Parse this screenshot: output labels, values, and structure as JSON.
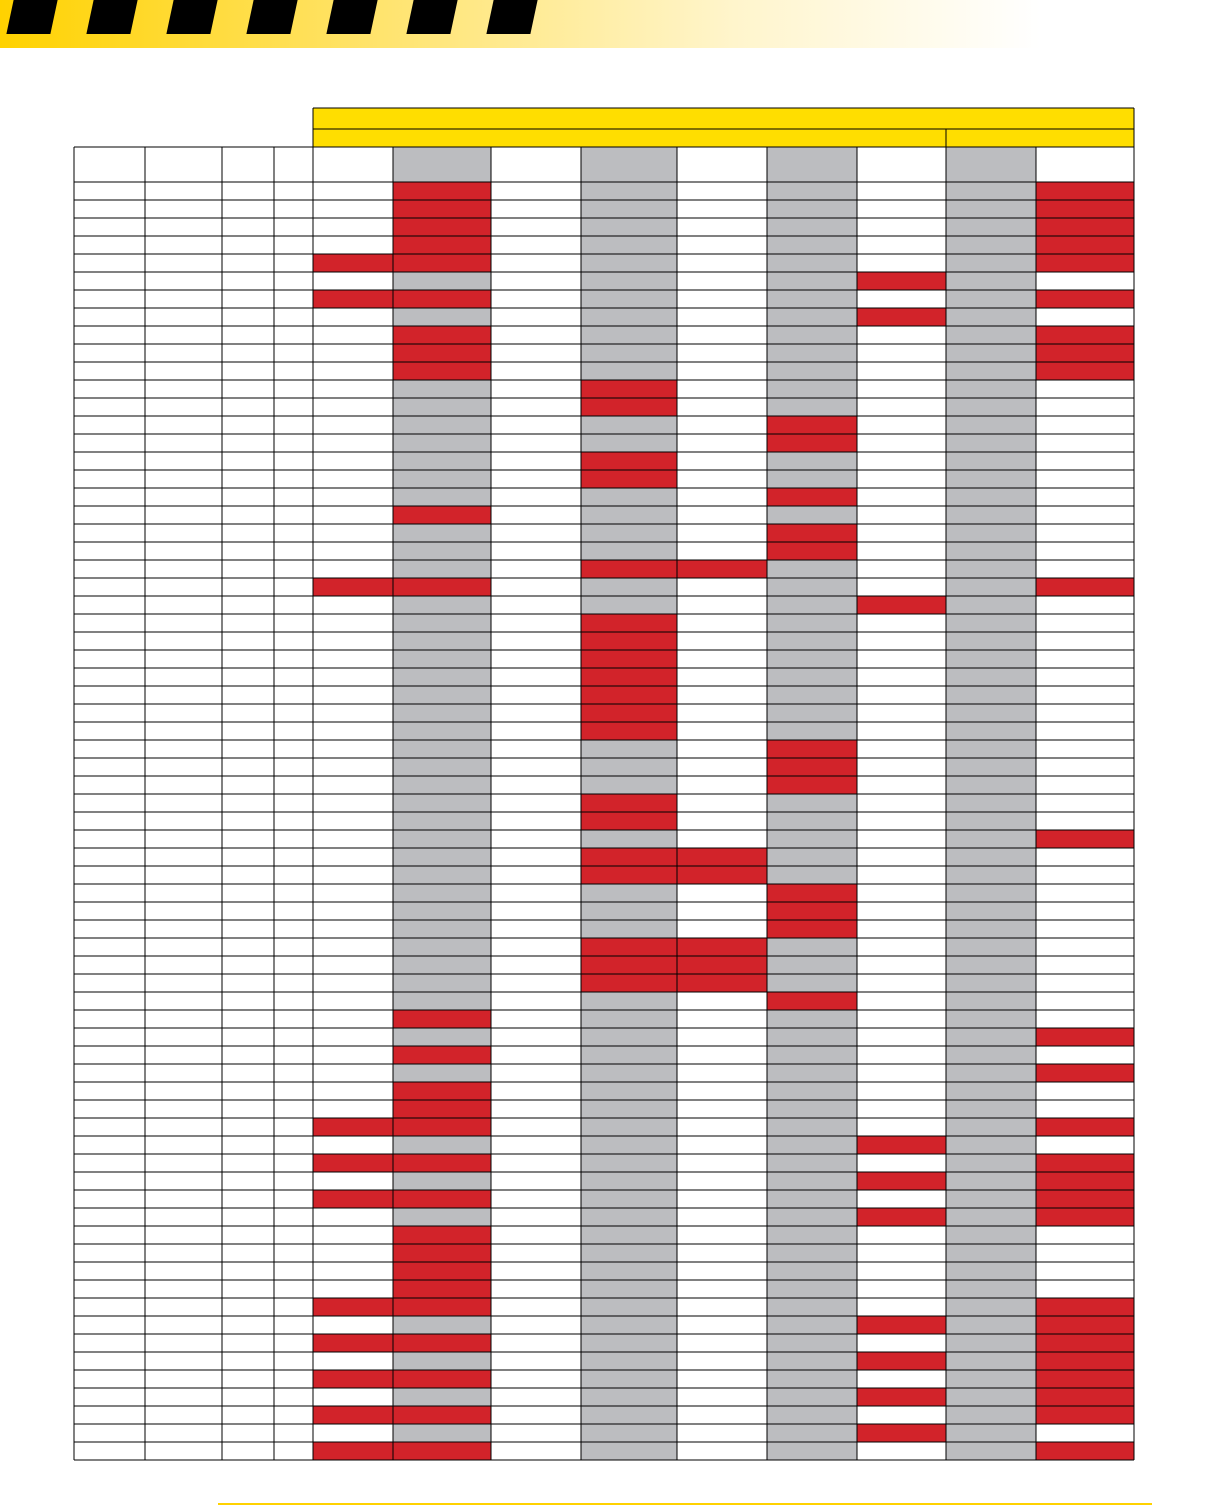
{
  "colors": {
    "banner_yellow": "#ffd200",
    "stripe": "#000000",
    "header_yellow": "#ffde00",
    "gray": "#bcbdc0",
    "red": "#d2232a",
    "white": "#ffffff",
    "border": "#000000"
  },
  "table": {
    "header_top_label": "",
    "header_group_labels": [
      "",
      ""
    ],
    "column_headers": [
      "",
      "",
      "",
      "",
      "",
      "",
      "",
      "",
      "",
      "",
      "",
      "",
      ""
    ],
    "gray_columns": [
      5,
      7,
      9,
      11
    ],
    "red_cells": {
      "0": [
        5,
        12
      ],
      "1": [
        5,
        12
      ],
      "2": [
        5,
        12
      ],
      "3": [
        5,
        12
      ],
      "4": [
        4,
        5,
        12
      ],
      "5": [
        10
      ],
      "6": [
        4,
        5,
        12
      ],
      "7": [
        10
      ],
      "8": [
        5,
        12
      ],
      "9": [
        5,
        12
      ],
      "10": [
        5,
        12
      ],
      "11": [
        7
      ],
      "12": [
        7
      ],
      "13": [
        9
      ],
      "14": [
        9
      ],
      "15": [
        7
      ],
      "16": [
        7
      ],
      "17": [
        9
      ],
      "18": [
        5
      ],
      "19": [
        9
      ],
      "20": [
        9
      ],
      "21": [
        7,
        8
      ],
      "22": [
        4,
        5,
        12
      ],
      "23": [
        10
      ],
      "24": [
        7
      ],
      "25": [
        7
      ],
      "26": [
        7
      ],
      "27": [
        7
      ],
      "28": [
        7
      ],
      "29": [
        7
      ],
      "30": [
        7
      ],
      "31": [
        9
      ],
      "32": [
        9
      ],
      "33": [
        9
      ],
      "34": [
        7
      ],
      "35": [
        7
      ],
      "36": [
        12
      ],
      "37": [
        7,
        8
      ],
      "38": [
        7,
        8
      ],
      "39": [
        9
      ],
      "40": [
        9
      ],
      "41": [
        9
      ],
      "42": [
        7,
        8
      ],
      "43": [
        7,
        8
      ],
      "44": [
        7,
        8
      ],
      "45": [
        9
      ],
      "46": [
        5
      ],
      "47": [
        12
      ],
      "48": [
        5
      ],
      "49": [
        12
      ],
      "50": [
        5
      ],
      "51": [
        5
      ],
      "52": [
        4,
        5,
        12
      ],
      "53": [
        10
      ],
      "54": [
        4,
        5,
        12
      ],
      "55": [
        10,
        12
      ],
      "56": [
        4,
        5,
        12
      ],
      "57": [
        10,
        12
      ],
      "58": [
        5
      ],
      "59": [
        5
      ],
      "60": [
        5
      ],
      "61": [
        5
      ],
      "62": [
        4,
        5,
        12
      ],
      "63": [
        10,
        12
      ],
      "64": [
        4,
        5,
        12
      ],
      "65": [
        10,
        12
      ],
      "66": [
        4,
        5,
        12
      ],
      "67": [
        10,
        12
      ],
      "68": [
        4,
        5,
        12
      ],
      "69": [
        10
      ],
      "70": [
        4,
        5,
        12
      ]
    }
  }
}
